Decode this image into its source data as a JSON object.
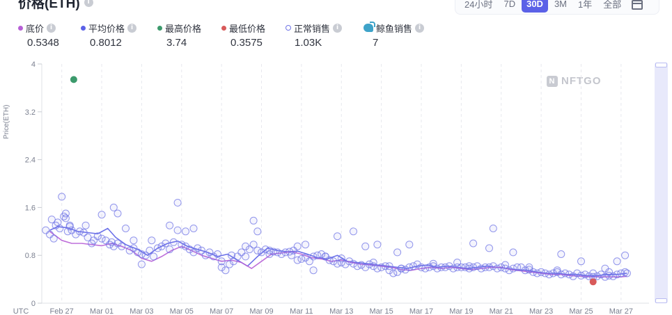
{
  "header": {
    "title": "价格(ETH)",
    "info_icon": "info-icon"
  },
  "range_selector": {
    "options": [
      "24小时",
      "7D",
      "30D",
      "3M",
      "1年",
      "全部"
    ],
    "active": "30D",
    "calendar_icon": "calendar-icon"
  },
  "stats": [
    {
      "label": "底价",
      "value": "0.5348",
      "color": "#b75fd6",
      "marker": "dot"
    },
    {
      "label": "平均价格",
      "value": "0.8012",
      "color": "#5b61e7",
      "marker": "dot"
    },
    {
      "label": "最高价格",
      "value": "3.74",
      "color": "#3c9a6c",
      "marker": "dot"
    },
    {
      "label": "最低价格",
      "value": "0.3575",
      "color": "#d85a5a",
      "marker": "dot"
    },
    {
      "label": "正常销售",
      "value": "1.03K",
      "color": "#6f74e6",
      "marker": "ring"
    },
    {
      "label": "鲸鱼销售",
      "value": "7",
      "color": "#3ea3c9",
      "marker": "whale-icon"
    }
  ],
  "watermark": "NFTGO",
  "chart_data": {
    "type": "scatter",
    "ylabel": "Price(ETH)",
    "ylim": [
      0,
      4
    ],
    "y_ticks": [
      "0",
      "0.8",
      "1.6",
      "2.4",
      "3.2",
      "4"
    ],
    "x_ticks": [
      "UTC",
      "Feb 27",
      "Mar 01",
      "Mar 03",
      "Mar 05",
      "Mar 07",
      "Mar 09",
      "Mar 11",
      "Mar 13",
      "Mar 15",
      "Mar 17",
      "Mar 19",
      "Mar 21",
      "Mar 23",
      "Mar 25",
      "Mar 27"
    ],
    "x_range_days": [
      -1,
      29.4
    ],
    "grid": "vertical-dashed",
    "series": [
      {
        "name": "平均价格",
        "kind": "line",
        "color": "#5b61e7",
        "x": [
          -0.6,
          -0.2,
          0.3,
          0.8,
          1.3,
          1.8,
          2.3,
          2.7,
          3.2,
          3.8,
          4.3,
          4.8,
          5.3,
          5.8,
          6.3,
          6.8,
          7.3,
          7.8,
          8.3,
          8.8,
          9.3,
          9.8,
          10.3,
          10.8,
          11.3,
          11.8,
          12.3,
          12.8,
          13.3,
          13.8,
          14.3,
          14.8,
          15.3,
          15.8,
          16.3,
          16.8,
          17.3,
          17.8,
          18.3,
          18.8,
          19.3,
          19.8,
          20.3,
          20.8,
          21.3,
          21.8,
          22.3,
          22.8,
          23.3,
          23.8,
          24.3,
          24.8,
          25.3,
          25.8,
          26.3,
          26.8,
          27.3,
          27.8,
          28.3
        ],
        "y": [
          1.22,
          1.28,
          1.26,
          1.2,
          1.18,
          1.16,
          1.25,
          1.1,
          0.98,
          0.9,
          0.8,
          0.92,
          1.0,
          1.04,
          0.95,
          0.9,
          0.85,
          0.78,
          0.82,
          0.72,
          0.62,
          0.78,
          0.92,
          0.88,
          0.86,
          0.87,
          0.82,
          0.76,
          0.74,
          0.8,
          0.7,
          0.68,
          0.66,
          0.64,
          0.62,
          0.6,
          0.58,
          0.62,
          0.64,
          0.6,
          0.62,
          0.6,
          0.58,
          0.6,
          0.62,
          0.6,
          0.58,
          0.56,
          0.55,
          0.52,
          0.5,
          0.5,
          0.48,
          0.48,
          0.46,
          0.46,
          0.48,
          0.48,
          0.5
        ]
      },
      {
        "name": "底价",
        "kind": "line",
        "color": "#b75fd6",
        "x": [
          -0.6,
          0.0,
          0.5,
          1.0,
          1.5,
          2.0,
          2.5,
          3.0,
          3.5,
          4.0,
          4.5,
          5.0,
          5.5,
          6.0,
          6.5,
          7.0,
          7.5,
          8.0,
          8.5,
          9.0,
          9.5,
          10.0,
          10.5,
          11.0,
          11.5,
          12.0,
          12.5,
          13.0,
          13.5,
          14.0,
          14.5,
          15.0,
          15.5,
          16.0,
          16.5,
          17.0,
          17.5,
          18.0,
          18.5,
          19.0,
          19.5,
          20.0,
          20.5,
          21.0,
          21.5,
          22.0,
          22.5,
          23.0,
          23.5,
          24.0,
          24.5,
          25.0,
          25.5,
          26.0,
          26.5,
          27.0,
          27.5,
          28.0,
          28.3
        ],
        "y": [
          1.2,
          1.05,
          1.0,
          1.0,
          0.98,
          0.96,
          1.0,
          0.95,
          0.88,
          0.75,
          0.7,
          0.78,
          0.88,
          0.95,
          0.88,
          0.8,
          0.75,
          0.7,
          0.72,
          0.68,
          0.58,
          0.7,
          0.82,
          0.84,
          0.86,
          0.82,
          0.76,
          0.74,
          0.7,
          0.72,
          0.68,
          0.65,
          0.64,
          0.62,
          0.6,
          0.56,
          0.55,
          0.58,
          0.6,
          0.58,
          0.6,
          0.58,
          0.56,
          0.58,
          0.6,
          0.6,
          0.56,
          0.54,
          0.52,
          0.5,
          0.48,
          0.48,
          0.46,
          0.45,
          0.44,
          0.44,
          0.44,
          0.44,
          0.45
        ]
      },
      {
        "name": "正常销售",
        "kind": "scatter",
        "color": "#6f74e6",
        "x": [
          -0.8,
          -0.6,
          -0.5,
          -0.4,
          -0.3,
          -0.2,
          -0.1,
          0.0,
          0.1,
          0.2,
          0.3,
          0.4,
          0.5,
          0.7,
          0.9,
          1.1,
          1.3,
          1.5,
          1.6,
          1.8,
          2.0,
          2.2,
          2.4,
          2.5,
          2.6,
          2.8,
          3.0,
          3.2,
          3.4,
          3.6,
          3.8,
          4.0,
          4.2,
          4.4,
          4.6,
          4.8,
          5.0,
          5.2,
          5.4,
          5.6,
          5.8,
          6.0,
          6.2,
          6.4,
          6.6,
          6.8,
          7.0,
          7.2,
          7.4,
          7.6,
          7.8,
          8.0,
          8.2,
          8.4,
          8.6,
          8.8,
          9.0,
          9.2,
          9.4,
          9.6,
          9.8,
          10.0,
          10.2,
          10.4,
          10.6,
          10.8,
          11.0,
          11.2,
          11.4,
          11.6,
          11.8,
          12.0,
          12.2,
          12.4,
          12.6,
          12.8,
          13.0,
          13.2,
          13.4,
          13.6,
          13.8,
          14.0,
          14.2,
          14.4,
          14.6,
          14.8,
          15.0,
          15.2,
          15.4,
          15.6,
          15.8,
          16.0,
          16.2,
          16.4,
          16.6,
          16.8,
          17.0,
          17.2,
          17.4,
          17.6,
          17.8,
          18.0,
          18.2,
          18.4,
          18.6,
          18.8,
          19.0,
          19.2,
          19.4,
          19.6,
          19.8,
          20.0,
          20.2,
          20.4,
          20.6,
          20.8,
          21.0,
          21.2,
          21.4,
          21.6,
          21.8,
          22.0,
          22.2,
          22.4,
          22.6,
          22.8,
          23.0,
          23.2,
          23.4,
          23.6,
          23.8,
          24.0,
          24.2,
          24.4,
          24.6,
          24.8,
          25.0,
          25.2,
          25.4,
          25.6,
          25.8,
          26.0,
          26.2,
          26.4,
          26.6,
          26.8,
          27.0,
          27.2,
          27.4,
          27.6,
          27.8,
          28.0,
          28.2,
          28.3,
          0.2,
          1.2,
          2.0,
          3.6,
          4.0,
          5.8,
          6.6,
          9.6,
          9.8,
          11.8,
          12.6,
          13.8,
          14.6,
          15.2,
          15.8,
          16.8,
          17.4,
          20.6,
          21.4,
          21.6,
          22.6,
          25.0,
          26.0,
          27.2,
          27.8,
          28.2,
          0.4,
          2.6,
          2.8,
          4.5,
          5.4,
          6.2,
          8.0,
          8.5,
          9.2,
          10.4,
          11.5,
          12.2,
          13.2,
          14.0,
          15.6,
          16.4,
          17.0,
          18.6,
          19.8,
          20.4,
          22.2,
          23.4,
          24.8,
          26.6,
          27.4
        ],
        "y": [
          1.22,
          1.15,
          1.4,
          1.08,
          1.3,
          1.35,
          1.25,
          1.78,
          1.45,
          1.5,
          1.2,
          1.28,
          1.22,
          1.15,
          1.2,
          1.18,
          1.1,
          1.0,
          1.05,
          1.12,
          1.08,
          1.05,
          0.98,
          1.02,
          0.95,
          1.0,
          0.95,
          1.25,
          0.88,
          0.92,
          0.85,
          0.82,
          0.8,
          0.88,
          0.78,
          0.92,
          0.95,
          1.0,
          0.9,
          1.02,
          1.68,
          0.98,
          0.95,
          0.9,
          0.85,
          0.92,
          0.88,
          0.8,
          0.85,
          0.78,
          0.82,
          0.6,
          0.55,
          0.65,
          0.7,
          0.78,
          0.85,
          0.95,
          0.9,
          0.98,
          0.88,
          0.85,
          0.9,
          0.88,
          0.86,
          0.85,
          0.82,
          0.85,
          0.86,
          0.88,
          0.72,
          0.74,
          0.76,
          0.7,
          0.78,
          0.8,
          0.82,
          0.78,
          0.72,
          0.7,
          0.66,
          0.68,
          0.65,
          0.7,
          0.66,
          0.62,
          0.64,
          0.6,
          0.65,
          0.62,
          0.58,
          0.6,
          0.62,
          0.55,
          0.5,
          0.52,
          0.58,
          0.56,
          0.6,
          0.62,
          0.65,
          0.6,
          0.58,
          0.6,
          0.62,
          0.58,
          0.6,
          0.6,
          0.62,
          0.58,
          0.6,
          0.6,
          0.6,
          0.58,
          0.6,
          0.62,
          0.58,
          0.6,
          0.6,
          0.62,
          0.58,
          0.6,
          0.58,
          0.55,
          0.58,
          0.6,
          0.6,
          0.55,
          0.56,
          0.52,
          0.5,
          0.52,
          0.5,
          0.48,
          0.5,
          0.52,
          0.48,
          0.5,
          0.48,
          0.45,
          0.5,
          0.46,
          0.48,
          0.45,
          0.44,
          0.45,
          0.48,
          0.44,
          0.46,
          0.45,
          0.48,
          0.5,
          0.52,
          0.5,
          1.42,
          1.3,
          1.48,
          1.05,
          0.65,
          1.22,
          1.25,
          1.38,
          1.2,
          0.95,
          0.55,
          1.12,
          1.2,
          0.95,
          0.98,
          0.85,
          0.98,
          1.0,
          0.92,
          1.25,
          0.85,
          0.82,
          0.7,
          0.58,
          0.7,
          0.8,
          1.3,
          1.6,
          1.5,
          1.05,
          1.3,
          1.2,
          0.7,
          0.8,
          0.78,
          0.82,
          0.8,
          0.98,
          0.78,
          0.75,
          0.68,
          0.62,
          0.58,
          0.66,
          0.68,
          0.62,
          0.64,
          0.6,
          0.55,
          0.5,
          0.52
        ]
      },
      {
        "name": "最高价格",
        "kind": "point",
        "color": "#3c9a6c",
        "x": [
          0.6
        ],
        "y": [
          3.74
        ]
      },
      {
        "name": "最低价格",
        "kind": "point",
        "color": "#d85a5a",
        "x": [
          26.6
        ],
        "y": [
          0.3575
        ]
      }
    ]
  }
}
